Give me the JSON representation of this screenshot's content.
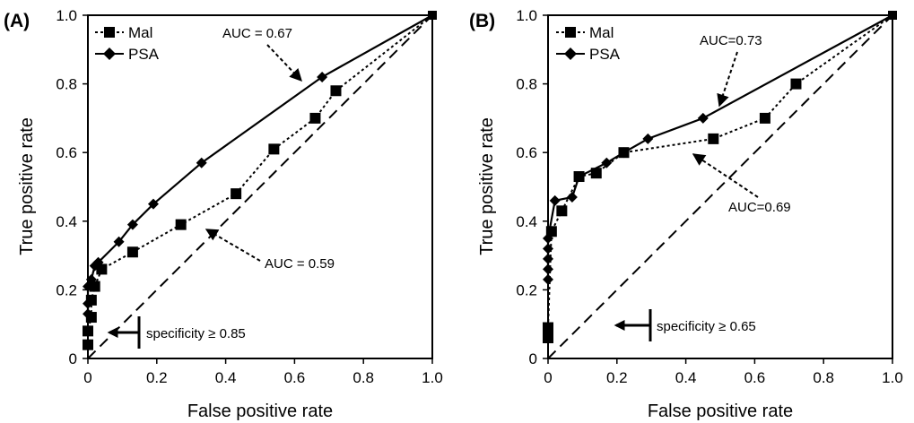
{
  "chart_data": [
    {
      "type": "line",
      "panel_label": "(A)",
      "xlabel": "False positive rate",
      "ylabel": "True positive rate",
      "xlim": [
        0,
        1
      ],
      "ylim": [
        0,
        1
      ],
      "xticks": [
        "0",
        "0.2",
        "0.4",
        "0.6",
        "0.8",
        "1.0"
      ],
      "yticks": [
        "0",
        "0.2",
        "0.4",
        "0.6",
        "0.8",
        "1.0"
      ],
      "grid": false,
      "legend_position": "top-left",
      "series": [
        {
          "name": "Mal",
          "line": "dotted",
          "marker": "square",
          "points": [
            [
              0,
              0.04
            ],
            [
              0,
              0.08
            ],
            [
              0.01,
              0.12
            ],
            [
              0.01,
              0.17
            ],
            [
              0.02,
              0.21
            ],
            [
              0.04,
              0.26
            ],
            [
              0.13,
              0.31
            ],
            [
              0.27,
              0.39
            ],
            [
              0.43,
              0.48
            ],
            [
              0.54,
              0.61
            ],
            [
              0.66,
              0.7
            ],
            [
              0.72,
              0.78
            ],
            [
              1.0,
              1.0
            ]
          ]
        },
        {
          "name": "PSA",
          "line": "solid",
          "marker": "diamond",
          "points": [
            [
              0,
              0.13
            ],
            [
              0,
              0.16
            ],
            [
              0,
              0.21
            ],
            [
              0.01,
              0.23
            ],
            [
              0.02,
              0.27
            ],
            [
              0.03,
              0.28
            ],
            [
              0.09,
              0.34
            ],
            [
              0.13,
              0.39
            ],
            [
              0.19,
              0.45
            ],
            [
              0.33,
              0.57
            ],
            [
              0.68,
              0.82
            ],
            [
              1.0,
              1.0
            ]
          ]
        },
        {
          "name": "",
          "line": "dashed",
          "marker": "none",
          "points": [
            [
              0,
              0
            ],
            [
              1,
              1
            ]
          ]
        }
      ],
      "annotations": [
        {
          "text": "AUC = 0.67"
        },
        {
          "text": "AUC = 0.59"
        },
        {
          "text": "specificity ≥ 0.85"
        }
      ]
    },
    {
      "type": "line",
      "panel_label": "(B)",
      "xlabel": "False positive rate",
      "ylabel": "True positive rate",
      "xlim": [
        0,
        1
      ],
      "ylim": [
        0,
        1
      ],
      "xticks": [
        "0",
        "0.2",
        "0.4",
        "0.6",
        "0.8",
        "1.0"
      ],
      "yticks": [
        "0",
        "0.2",
        "0.4",
        "0.6",
        "0.8",
        "1.0"
      ],
      "grid": false,
      "legend_position": "top-left",
      "series": [
        {
          "name": "Mal",
          "line": "dotted",
          "marker": "square",
          "points": [
            [
              0,
              0.06
            ],
            [
              0,
              0.09
            ],
            [
              0.01,
              0.37
            ],
            [
              0.04,
              0.43
            ],
            [
              0.09,
              0.53
            ],
            [
              0.14,
              0.54
            ],
            [
              0.22,
              0.6
            ],
            [
              0.48,
              0.64
            ],
            [
              0.63,
              0.7
            ],
            [
              0.72,
              0.8
            ],
            [
              1.0,
              1.0
            ]
          ]
        },
        {
          "name": "PSA",
          "line": "solid",
          "marker": "diamond",
          "points": [
            [
              0,
              0.23
            ],
            [
              0,
              0.26
            ],
            [
              0,
              0.29
            ],
            [
              0,
              0.32
            ],
            [
              0,
              0.35
            ],
            [
              0.02,
              0.46
            ],
            [
              0.07,
              0.47
            ],
            [
              0.09,
              0.53
            ],
            [
              0.17,
              0.57
            ],
            [
              0.22,
              0.6
            ],
            [
              0.29,
              0.64
            ],
            [
              0.45,
              0.7
            ],
            [
              1.0,
              1.0
            ]
          ]
        },
        {
          "name": "",
          "line": "dashed",
          "marker": "none",
          "points": [
            [
              0,
              0
            ],
            [
              1,
              1
            ]
          ]
        }
      ],
      "annotations": [
        {
          "text": "AUC=0.73"
        },
        {
          "text": "AUC=0.69"
        },
        {
          "text": "specificity ≥ 0.65"
        }
      ]
    }
  ]
}
